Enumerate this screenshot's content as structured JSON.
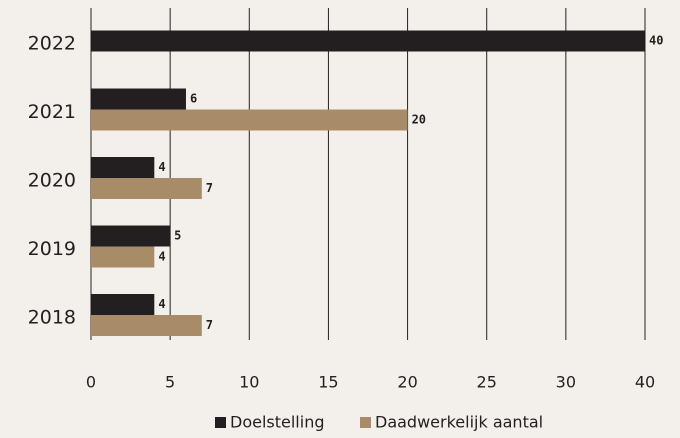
{
  "chart_data": {
    "type": "barh",
    "categories": [
      "2022",
      "2021",
      "2020",
      "2019",
      "2018"
    ],
    "series": [
      {
        "name": "Doelstelling",
        "color": "#231f20",
        "values": [
          40,
          6,
          4,
          5,
          4
        ]
      },
      {
        "name": "Daadwerkelijk aantal",
        "color": "#a88c68",
        "values": [
          null,
          20,
          7,
          4,
          7
        ]
      }
    ],
    "xlim": [
      0,
      40
    ],
    "xticks": [
      0,
      5,
      10,
      15,
      20,
      25,
      30,
      40
    ],
    "grid": true,
    "legend": "bottom"
  }
}
